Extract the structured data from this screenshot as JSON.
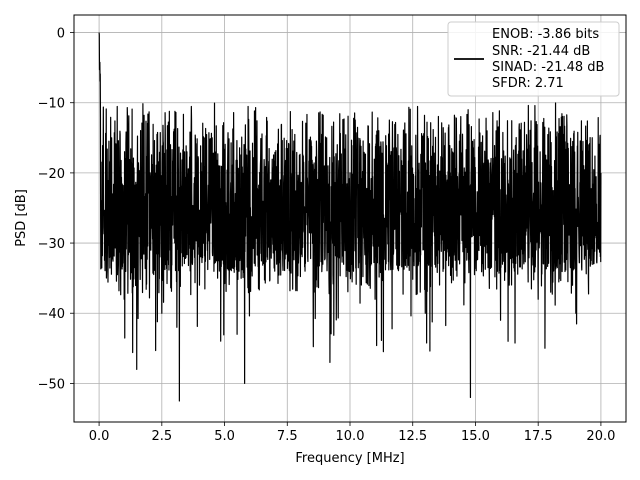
{
  "chart_data": {
    "type": "line",
    "title": "",
    "xlabel": "Frequency [MHz]",
    "ylabel": "PSD [dB]",
    "xlim": [
      -1.0,
      21.0
    ],
    "ylim": [
      -55.5,
      2.5
    ],
    "grid": true,
    "x_ticks": [
      0.0,
      2.5,
      5.0,
      7.5,
      10.0,
      12.5,
      15.0,
      17.5,
      20.0
    ],
    "x_tick_labels": [
      "0.0",
      "2.5",
      "5.0",
      "7.5",
      "10.0",
      "12.5",
      "15.0",
      "17.5",
      "20.0"
    ],
    "y_ticks": [
      0,
      -10,
      -20,
      -30,
      -40,
      -50
    ],
    "y_tick_labels": [
      "0",
      "−10",
      "−20",
      "−30",
      "−40",
      "−50"
    ],
    "legend": {
      "placement": "top-right",
      "entries": [
        "ENOB: -3.86 bits",
        "SNR: -21.44 dB",
        "SINAD: -21.48 dB",
        "SFDR: 2.71"
      ]
    },
    "series": [
      {
        "color": "#000000",
        "x_range": [
          0.0,
          20.0
        ],
        "approx_envelope_db": [
          -5,
          -40
        ],
        "x": [
          0.0,
          0.05,
          0.1,
          0.3,
          0.5,
          0.8,
          1.0,
          1.2,
          1.5,
          2.0,
          2.5,
          3.0,
          3.1,
          3.2,
          3.5,
          4.0,
          4.5,
          5.0,
          5.5,
          5.8,
          6.0,
          7.0,
          8.0,
          9.0,
          9.2,
          10.0,
          11.0,
          12.0,
          13.0,
          14.0,
          14.8,
          15.0,
          16.0,
          16.3,
          17.0,
          17.5,
          18.0,
          18.5,
          19.0,
          19.5,
          20.0
        ],
        "y": [
          0.0,
          -12.0,
          -25.0,
          -34.0,
          -15.0,
          -28.0,
          -38.0,
          -20.0,
          -48.0,
          -18.0,
          -40.0,
          -22.0,
          -42.0,
          -52.5,
          -17.0,
          -36.0,
          -21.0,
          -30.0,
          -43.0,
          -50.0,
          -20.0,
          -34.0,
          -22.0,
          -28.0,
          -47.0,
          -20.0,
          -38.0,
          -24.0,
          -40.0,
          -20.0,
          -52.0,
          -22.0,
          -41.0,
          -44.0,
          -20.0,
          -38.0,
          -37.0,
          -22.0,
          -40.0,
          -35.0,
          -20.0
        ]
      }
    ]
  }
}
